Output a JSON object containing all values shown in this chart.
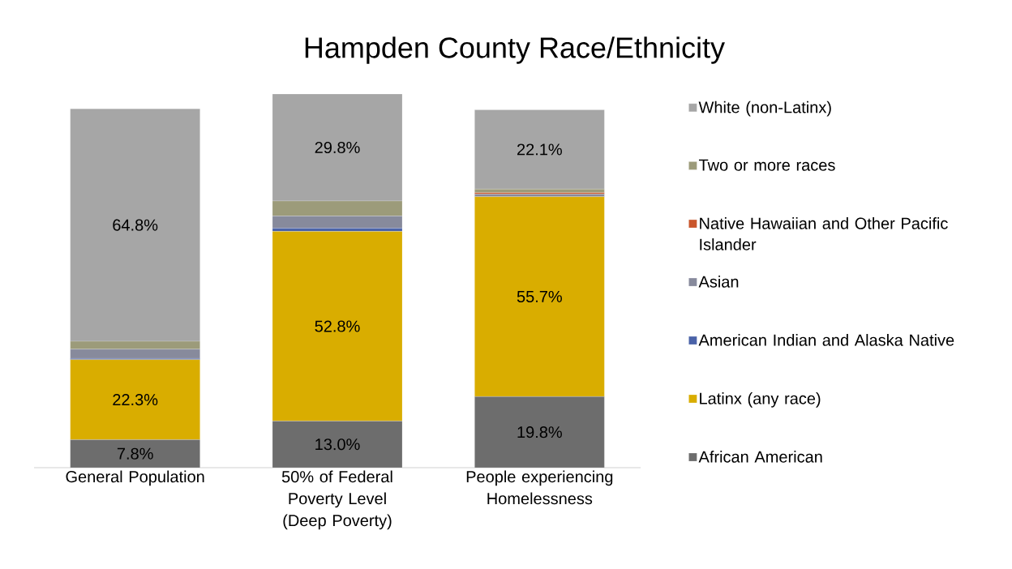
{
  "chart_data": {
    "type": "bar",
    "stacked": true,
    "title": "Hampden County Race/Ethnicity",
    "categories": [
      "General Population",
      "50% of Federal Poverty Level (Deep Poverty)",
      "People experiencing Homelessness"
    ],
    "series": [
      {
        "name": "African American",
        "color": "#6d6d6d",
        "values": [
          7.8,
          13.0,
          19.8
        ],
        "value_labels": [
          "7.8%",
          "13.0%",
          "19.8%"
        ]
      },
      {
        "name": "Latinx (any race)",
        "color": "#d9ad00",
        "values": [
          22.3,
          52.8,
          55.7
        ],
        "value_labels": [
          "22.3%",
          "52.8%",
          "55.7%"
        ]
      },
      {
        "name": "American Indian and Alaska Native",
        "color": "#4a62a8",
        "values": [
          0.3,
          0.9,
          null
        ]
      },
      {
        "name": "Asian",
        "color": "#878a9c",
        "values": [
          2.6,
          3.4,
          0.7
        ]
      },
      {
        "name": "Native Hawaiian and Other Pacific Islander",
        "color": "#c9552b",
        "values": [
          0,
          0,
          0.4
        ]
      },
      {
        "name": "Two or more races",
        "color": "#9c9b7a",
        "values": [
          2.2,
          4.2,
          1.0
        ]
      },
      {
        "name": "White (non-Latinx)",
        "color": "#a6a6a6",
        "values": [
          64.8,
          29.8,
          22.1
        ],
        "value_labels": [
          "64.8%",
          "29.8%",
          "22.1%"
        ]
      }
    ],
    "legend": "right"
  }
}
